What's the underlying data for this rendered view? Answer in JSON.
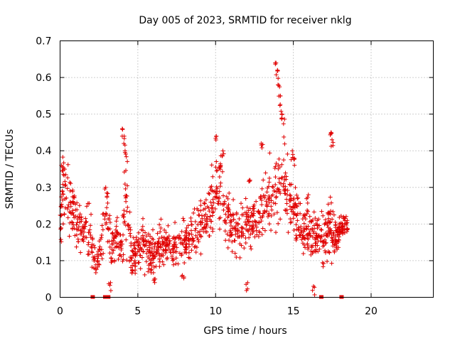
{
  "chart_data": {
    "type": "scatter",
    "title": "Day 005 of 2023, SRMTID for receiver nklg",
    "xlabel": "GPS time / hours",
    "ylabel": "SRMTID / TECUs",
    "xlim": [
      0,
      24
    ],
    "ylim": [
      0,
      0.7
    ],
    "x_ticks": [
      0,
      5,
      10,
      15,
      20
    ],
    "y_ticks": [
      0,
      0.1,
      0.2,
      0.3,
      0.4,
      0.5,
      0.6,
      0.7
    ],
    "x_tick_labels": [
      "0",
      "5",
      "10",
      "15",
      "20"
    ],
    "y_tick_labels": [
      "0",
      "0.1",
      "0.2",
      "0.3",
      "0.4",
      "0.5",
      "0.6",
      "0.7"
    ],
    "grid": true,
    "marker": "+",
    "series_color": "#e00000",
    "gap_markers_x": [
      2.1,
      2.9,
      3.1,
      16.8,
      18.1
    ],
    "profile_x": [
      0,
      0.2,
      0.5,
      1,
      1.5,
      2,
      2.3,
      2.6,
      3,
      3.3,
      3.7,
      4,
      4.2,
      4.6,
      5,
      5.5,
      6,
      6.5,
      7,
      7.5,
      8,
      8.5,
      9,
      9.5,
      10,
      10.3,
      10.6,
      11,
      11.5,
      12,
      12.5,
      13,
      13.5,
      14,
      14.3,
      14.6,
      15,
      15.5,
      16,
      16.5,
      17,
      17.4,
      17.8,
      18.1,
      18.5
    ],
    "profile_y": [
      0.2,
      0.3,
      0.26,
      0.22,
      0.18,
      0.17,
      0.09,
      0.12,
      0.22,
      0.13,
      0.16,
      0.12,
      0.3,
      0.1,
      0.14,
      0.13,
      0.12,
      0.14,
      0.15,
      0.13,
      0.15,
      0.16,
      0.2,
      0.22,
      0.28,
      0.3,
      0.22,
      0.2,
      0.18,
      0.2,
      0.2,
      0.24,
      0.28,
      0.3,
      0.42,
      0.28,
      0.24,
      0.2,
      0.18,
      0.18,
      0.16,
      0.2,
      0.16,
      0.19,
      0.2
    ],
    "spread_y": [
      0.06,
      0.06,
      0.06,
      0.05,
      0.05,
      0.06,
      0.03,
      0.05,
      0.05,
      0.04,
      0.04,
      0.04,
      0.1,
      0.03,
      0.04,
      0.04,
      0.04,
      0.04,
      0.04,
      0.04,
      0.04,
      0.04,
      0.05,
      0.06,
      0.07,
      0.08,
      0.06,
      0.05,
      0.05,
      0.05,
      0.05,
      0.06,
      0.06,
      0.07,
      0.12,
      0.07,
      0.06,
      0.05,
      0.05,
      0.05,
      0.05,
      0.06,
      0.04,
      0.02,
      0.02
    ],
    "peaks": [
      {
        "x": 0.15,
        "y": 0.36
      },
      {
        "x": 4.05,
        "y": 0.46
      },
      {
        "x": 4.15,
        "y": 0.44
      },
      {
        "x": 4.2,
        "y": 0.4
      },
      {
        "x": 10.05,
        "y": 0.44
      },
      {
        "x": 10.5,
        "y": 0.4
      },
      {
        "x": 12.2,
        "y": 0.32
      },
      {
        "x": 13,
        "y": 0.42
      },
      {
        "x": 13.9,
        "y": 0.64
      },
      {
        "x": 14,
        "y": 0.62
      },
      {
        "x": 14.05,
        "y": 0.58
      },
      {
        "x": 14.2,
        "y": 0.55
      },
      {
        "x": 14.3,
        "y": 0.5
      },
      {
        "x": 14.9,
        "y": 0.4
      },
      {
        "x": 15.05,
        "y": 0.38
      },
      {
        "x": 17.45,
        "y": 0.45
      },
      {
        "x": 17.5,
        "y": 0.43
      },
      {
        "x": 2.95,
        "y": 0.3
      },
      {
        "x": 10.3,
        "y": 0.36
      },
      {
        "x": 6.05,
        "y": 0.05
      },
      {
        "x": 7.9,
        "y": 0.06
      },
      {
        "x": 12.0,
        "y": 0.04
      },
      {
        "x": 3.2,
        "y": 0.04
      },
      {
        "x": 15.9,
        "y": 0.28
      },
      {
        "x": 16.3,
        "y": 0.03
      }
    ],
    "x_start": 0,
    "x_end": 18.5,
    "point_count": 1300
  }
}
